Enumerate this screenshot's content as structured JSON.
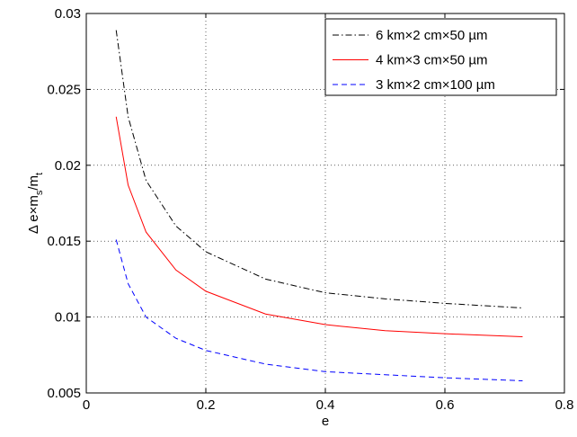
{
  "chart_data": {
    "type": "line",
    "ylabel_parts": [
      "Δ e×m",
      "s",
      "/m",
      "t"
    ],
    "xlabel": "e",
    "x": [
      0.05,
      0.07,
      0.1,
      0.15,
      0.2,
      0.3,
      0.4,
      0.5,
      0.6,
      0.73
    ],
    "series": [
      {
        "name": "6 km×2 cm×50 µm",
        "color": "#000000",
        "linestyle": "dashdot",
        "values": [
          0.0289,
          0.0232,
          0.019,
          0.016,
          0.0143,
          0.0125,
          0.0116,
          0.0112,
          0.0109,
          0.0106
        ]
      },
      {
        "name": "4 km×3 cm×50 µm",
        "color": "#ff0000",
        "linestyle": "solid",
        "values": [
          0.0232,
          0.0187,
          0.0156,
          0.0131,
          0.0117,
          0.0102,
          0.0095,
          0.0091,
          0.0089,
          0.0087
        ]
      },
      {
        "name": "3 km×2 cm×100 µm",
        "color": "#0000ff",
        "linestyle": "dashed",
        "values": [
          0.0151,
          0.0122,
          0.01,
          0.0086,
          0.0078,
          0.0069,
          0.0064,
          0.0062,
          0.006,
          0.0058
        ]
      }
    ],
    "xlim": [
      0,
      0.8
    ],
    "xticks": [
      0,
      0.2,
      0.4,
      0.6,
      0.8
    ],
    "ylim": [
      0.005,
      0.03
    ],
    "yticks": [
      0.005,
      0.01,
      0.015,
      0.02,
      0.025,
      0.03
    ],
    "grid": true,
    "legend": "upper right"
  }
}
